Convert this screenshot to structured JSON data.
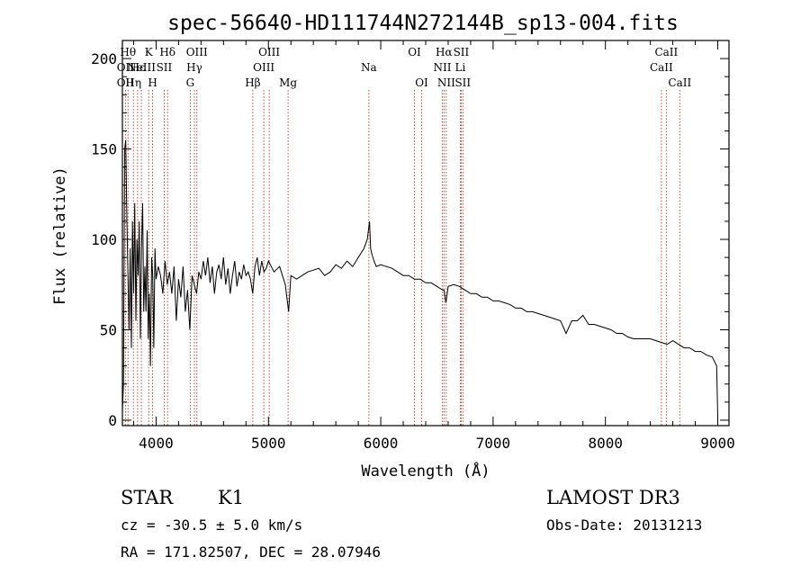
{
  "chart_data": {
    "type": "line",
    "title": "spec-56640-HD111744N272144B_sp13-004.fits",
    "xlabel": "Wavelength (Å)",
    "ylabel": "Flux (relative)",
    "xlim": [
      3700,
      9100
    ],
    "ylim": [
      -3,
      210
    ],
    "xticks": [
      4000,
      5000,
      6000,
      7000,
      8000,
      9000
    ],
    "yticks": [
      0,
      50,
      100,
      150,
      200
    ],
    "series": [
      {
        "name": "spectrum",
        "x": [
          3700,
          3710,
          3720,
          3730,
          3740,
          3750,
          3760,
          3770,
          3780,
          3790,
          3800,
          3810,
          3820,
          3830,
          3840,
          3850,
          3860,
          3870,
          3880,
          3890,
          3900,
          3910,
          3920,
          3930,
          3940,
          3950,
          3960,
          3970,
          3980,
          3990,
          4000,
          4020,
          4040,
          4060,
          4080,
          4100,
          4120,
          4140,
          4160,
          4180,
          4200,
          4220,
          4240,
          4260,
          4280,
          4300,
          4320,
          4340,
          4360,
          4380,
          4400,
          4420,
          4440,
          4460,
          4480,
          4500,
          4520,
          4540,
          4560,
          4580,
          4600,
          4620,
          4640,
          4660,
          4680,
          4700,
          4720,
          4740,
          4760,
          4780,
          4800,
          4820,
          4840,
          4860,
          4880,
          4900,
          4920,
          4940,
          4960,
          4980,
          5000,
          5050,
          5100,
          5150,
          5180,
          5200,
          5250,
          5300,
          5350,
          5400,
          5450,
          5500,
          5550,
          5600,
          5650,
          5700,
          5750,
          5800,
          5850,
          5880,
          5900,
          5910,
          5920,
          5940,
          5960,
          6000,
          6050,
          6100,
          6150,
          6200,
          6250,
          6300,
          6350,
          6400,
          6450,
          6500,
          6550,
          6563,
          6580,
          6600,
          6650,
          6700,
          6750,
          6800,
          6850,
          6900,
          6950,
          7000,
          7050,
          7100,
          7150,
          7200,
          7250,
          7300,
          7350,
          7400,
          7450,
          7500,
          7550,
          7600,
          7650,
          7700,
          7750,
          7800,
          7850,
          7900,
          7950,
          8000,
          8050,
          8100,
          8150,
          8200,
          8250,
          8300,
          8350,
          8400,
          8450,
          8500,
          8550,
          8600,
          8650,
          8700,
          8750,
          8800,
          8850,
          8900,
          8950,
          8990,
          9000
        ],
        "y": [
          5,
          20,
          150,
          155,
          110,
          80,
          50,
          95,
          40,
          110,
          70,
          120,
          55,
          100,
          80,
          110,
          45,
          95,
          120,
          60,
          85,
          60,
          105,
          45,
          70,
          30,
          90,
          80,
          40,
          95,
          78,
          85,
          80,
          70,
          88,
          75,
          82,
          70,
          85,
          55,
          78,
          68,
          85,
          60,
          72,
          50,
          80,
          75,
          70,
          82,
          78,
          88,
          80,
          90,
          76,
          85,
          70,
          82,
          86,
          78,
          90,
          75,
          84,
          70,
          80,
          88,
          74,
          82,
          78,
          86,
          80,
          82,
          78,
          70,
          85,
          90,
          80,
          88,
          82,
          84,
          88,
          82,
          85,
          75,
          60,
          80,
          78,
          80,
          82,
          83,
          84,
          80,
          82,
          86,
          84,
          88,
          85,
          90,
          95,
          100,
          110,
          95,
          92,
          88,
          85,
          86,
          85,
          84,
          82,
          80,
          80,
          78,
          78,
          76,
          76,
          74,
          72,
          72,
          65,
          74,
          75,
          74,
          72,
          70,
          70,
          68,
          68,
          66,
          66,
          65,
          64,
          62,
          62,
          60,
          60,
          59,
          58,
          57,
          56,
          55,
          48,
          55,
          55,
          58,
          53,
          53,
          52,
          51,
          50,
          48,
          48,
          46,
          45,
          45,
          45,
          45,
          44,
          43,
          42,
          44,
          42,
          40,
          40,
          38,
          38,
          36,
          35,
          30,
          2
        ]
      }
    ],
    "line_markers": [
      {
        "w": 3727,
        "label": "OII",
        "row": 2
      },
      {
        "w": 3727,
        "label": "OII",
        "row": 3
      },
      {
        "w": 3750,
        "label": "Hθ",
        "row": 1
      },
      {
        "w": 3798,
        "label": "Hη",
        "row": 3
      },
      {
        "w": 3835,
        "label": "Hε",
        "row": 2
      },
      {
        "w": 3869,
        "label": "NeIII",
        "row": 2
      },
      {
        "w": 3934,
        "label": "K",
        "row": 1
      },
      {
        "w": 3969,
        "label": "H",
        "row": 3
      },
      {
        "w": 4072,
        "label": "SII",
        "row": 2
      },
      {
        "w": 4102,
        "label": "Hδ",
        "row": 1
      },
      {
        "w": 4304,
        "label": "G",
        "row": 3
      },
      {
        "w": 4341,
        "label": "Hγ",
        "row": 2
      },
      {
        "w": 4363,
        "label": "OIII",
        "row": 1
      },
      {
        "w": 4861,
        "label": "Hβ",
        "row": 3
      },
      {
        "w": 4959,
        "label": "OIII",
        "row": 2
      },
      {
        "w": 5007,
        "label": "OIII",
        "row": 1
      },
      {
        "w": 5175,
        "label": "Mg",
        "row": 3
      },
      {
        "w": 5894,
        "label": "Na",
        "row": 2
      },
      {
        "w": 6300,
        "label": "OI",
        "row": 1
      },
      {
        "w": 6364,
        "label": "OI",
        "row": 3
      },
      {
        "w": 6548,
        "label": "NII",
        "row": 2
      },
      {
        "w": 6563,
        "label": "Hα",
        "row": 1
      },
      {
        "w": 6583,
        "label": "NII",
        "row": 3
      },
      {
        "w": 6716,
        "label": "SII",
        "row": 1
      },
      {
        "w": 6731,
        "label": "SII",
        "row": 3
      },
      {
        "w": 6708,
        "label": "Li",
        "row": 2
      },
      {
        "w": 8498,
        "label": "CaII",
        "row": 2
      },
      {
        "w": 8542,
        "label": "CaII",
        "row": 1
      },
      {
        "w": 8662,
        "label": "CaII",
        "row": 3
      }
    ]
  },
  "info": {
    "object_class": "STAR",
    "subclass": "K1",
    "redshift": "cz = -30.5 ± 5.0 km/s",
    "coords": "RA = 171.82507, DEC =  28.07946",
    "survey": "LAMOST DR3",
    "obs_date": "Obs-Date: 20131213"
  }
}
